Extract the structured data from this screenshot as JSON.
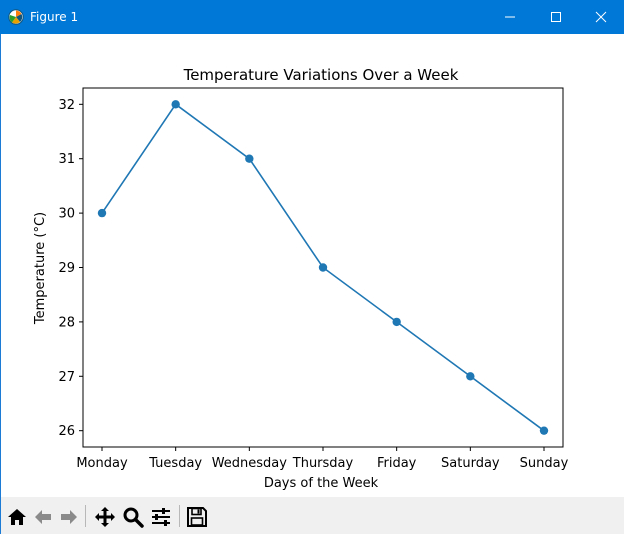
{
  "window": {
    "title": "Figure 1",
    "titlebar_color": "#0078d7"
  },
  "titlebar_buttons": [
    "minimize-icon",
    "maximize-icon",
    "close-icon"
  ],
  "toolbar": {
    "tools": [
      "home-icon",
      "back-arrow-icon",
      "forward-arrow-icon",
      "pan-icon",
      "zoom-icon",
      "configure-subplots-icon",
      "save-icon"
    ]
  },
  "chart_data": {
    "type": "line",
    "title": "Temperature Variations Over a Week",
    "xlabel": "Days of the Week",
    "ylabel": "Temperature (°C)",
    "categories": [
      "Monday",
      "Tuesday",
      "Wednesday",
      "Thursday",
      "Friday",
      "Saturday",
      "Sunday"
    ],
    "values": [
      30,
      32,
      31,
      29,
      28,
      27,
      26
    ],
    "yticks": [
      "26",
      "27",
      "28",
      "29",
      "30",
      "31",
      "32"
    ],
    "ylim": [
      25.7,
      32.3
    ],
    "color": "#1f77b4",
    "marker": "circle",
    "grid": false
  }
}
